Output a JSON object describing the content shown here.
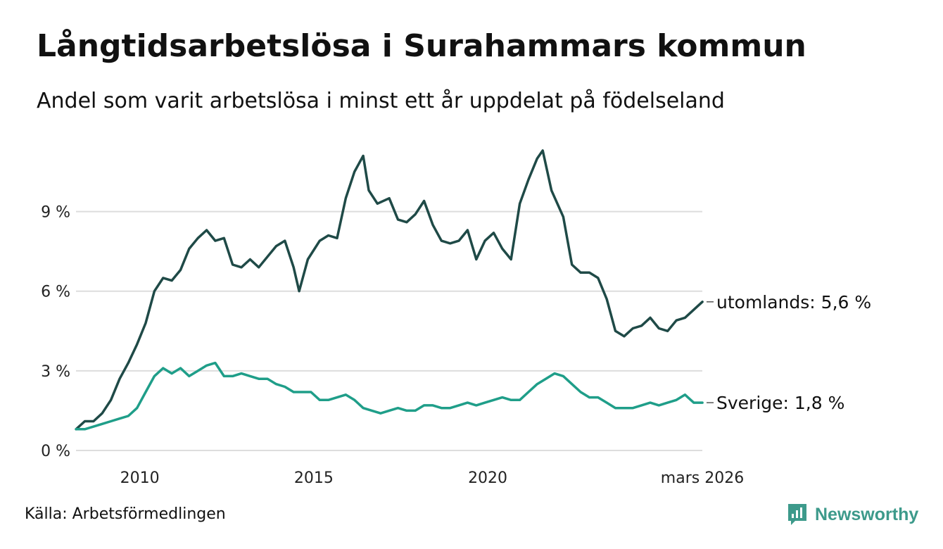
{
  "header": {
    "title": "Långtidsarbetslösa i Surahammars kommun",
    "subtitle": "Andel som varit arbetslösa i minst ett år uppdelat på födelseland"
  },
  "footer": {
    "source": "Källa: Arbetsförmedlingen",
    "brand": "Newsworthy"
  },
  "colors": {
    "utomlands": "#1f4a47",
    "sverige": "#1f9e89",
    "grid": "#dddddd",
    "brand": "#3d9a8b"
  },
  "chart_data": {
    "type": "line",
    "title": "Långtidsarbetslösa i Surahammars kommun",
    "xlabel": "",
    "ylabel": "",
    "xlim": [
      2008.167,
      2026.167
    ],
    "ylim": [
      0,
      11.8
    ],
    "y_ticks": [
      0,
      3,
      6,
      9
    ],
    "y_tick_labels": [
      "0 %",
      "3 %",
      "6 %",
      "9 %"
    ],
    "x_ticks": [
      2010,
      2015,
      2020,
      2026.167
    ],
    "x_tick_labels": [
      "2010",
      "2015",
      "2020",
      "mars 2026"
    ],
    "grid": true,
    "series": [
      {
        "name": "utomlands",
        "end_label": "utomlands: 5,6 %",
        "color": "#1f4a47",
        "x": [
          2008.17,
          2008.42,
          2008.67,
          2008.92,
          2009.17,
          2009.42,
          2009.67,
          2009.92,
          2010.17,
          2010.42,
          2010.67,
          2010.92,
          2011.17,
          2011.42,
          2011.67,
          2011.92,
          2012.17,
          2012.42,
          2012.67,
          2012.92,
          2013.17,
          2013.42,
          2013.67,
          2013.92,
          2014.17,
          2014.42,
          2014.58,
          2014.83,
          2015.17,
          2015.42,
          2015.67,
          2015.92,
          2016.17,
          2016.42,
          2016.58,
          2016.83,
          2017.17,
          2017.42,
          2017.67,
          2017.92,
          2018.17,
          2018.42,
          2018.67,
          2018.92,
          2019.17,
          2019.42,
          2019.67,
          2019.92,
          2020.17,
          2020.42,
          2020.67,
          2020.92,
          2021.17,
          2021.42,
          2021.58,
          2021.83,
          2022.17,
          2022.42,
          2022.67,
          2022.92,
          2023.17,
          2023.42,
          2023.67,
          2023.92,
          2024.17,
          2024.42,
          2024.67,
          2024.92,
          2025.17,
          2025.42,
          2025.67,
          2025.92,
          2026.17
        ],
        "y": [
          0.8,
          1.1,
          1.1,
          1.4,
          1.9,
          2.7,
          3.3,
          4.0,
          4.8,
          6.0,
          6.5,
          6.4,
          6.8,
          7.6,
          8.0,
          8.3,
          7.9,
          8.0,
          7.0,
          6.9,
          7.2,
          6.9,
          7.3,
          7.7,
          7.9,
          6.9,
          6.0,
          7.2,
          7.9,
          8.1,
          8.0,
          9.5,
          10.5,
          11.1,
          9.8,
          9.3,
          9.5,
          8.7,
          8.6,
          8.9,
          9.4,
          8.5,
          7.9,
          7.8,
          7.9,
          8.3,
          7.2,
          7.9,
          8.2,
          7.6,
          7.2,
          9.3,
          10.2,
          11.0,
          11.3,
          9.8,
          8.8,
          7.0,
          6.7,
          6.7,
          6.5,
          5.7,
          4.5,
          4.3,
          4.6,
          4.7,
          5.0,
          4.6,
          4.5,
          4.9,
          5.0,
          5.3,
          5.6
        ]
      },
      {
        "name": "Sverige",
        "end_label": "Sverige: 1,8 %",
        "color": "#1f9e89",
        "x": [
          2008.17,
          2008.42,
          2008.67,
          2008.92,
          2009.17,
          2009.42,
          2009.67,
          2009.92,
          2010.17,
          2010.42,
          2010.67,
          2010.92,
          2011.17,
          2011.42,
          2011.67,
          2011.92,
          2012.17,
          2012.42,
          2012.67,
          2012.92,
          2013.17,
          2013.42,
          2013.67,
          2013.92,
          2014.17,
          2014.42,
          2014.67,
          2014.92,
          2015.17,
          2015.42,
          2015.67,
          2015.92,
          2016.17,
          2016.42,
          2016.67,
          2016.92,
          2017.17,
          2017.42,
          2017.67,
          2017.92,
          2018.17,
          2018.42,
          2018.67,
          2018.92,
          2019.17,
          2019.42,
          2019.67,
          2019.92,
          2020.17,
          2020.42,
          2020.67,
          2020.92,
          2021.17,
          2021.42,
          2021.67,
          2021.92,
          2022.17,
          2022.42,
          2022.67,
          2022.92,
          2023.17,
          2023.42,
          2023.67,
          2023.92,
          2024.17,
          2024.42,
          2024.67,
          2024.92,
          2025.17,
          2025.42,
          2025.67,
          2025.92,
          2026.17
        ],
        "y": [
          0.8,
          0.8,
          0.9,
          1.0,
          1.1,
          1.2,
          1.3,
          1.6,
          2.2,
          2.8,
          3.1,
          2.9,
          3.1,
          2.8,
          3.0,
          3.2,
          3.3,
          2.8,
          2.8,
          2.9,
          2.8,
          2.7,
          2.7,
          2.5,
          2.4,
          2.2,
          2.2,
          2.2,
          1.9,
          1.9,
          2.0,
          2.1,
          1.9,
          1.6,
          1.5,
          1.4,
          1.5,
          1.6,
          1.5,
          1.5,
          1.7,
          1.7,
          1.6,
          1.6,
          1.7,
          1.8,
          1.7,
          1.8,
          1.9,
          2.0,
          1.9,
          1.9,
          2.2,
          2.5,
          2.7,
          2.9,
          2.8,
          2.5,
          2.2,
          2.0,
          2.0,
          1.8,
          1.6,
          1.6,
          1.6,
          1.7,
          1.8,
          1.7,
          1.8,
          1.9,
          2.1,
          1.8,
          1.8
        ]
      }
    ]
  }
}
